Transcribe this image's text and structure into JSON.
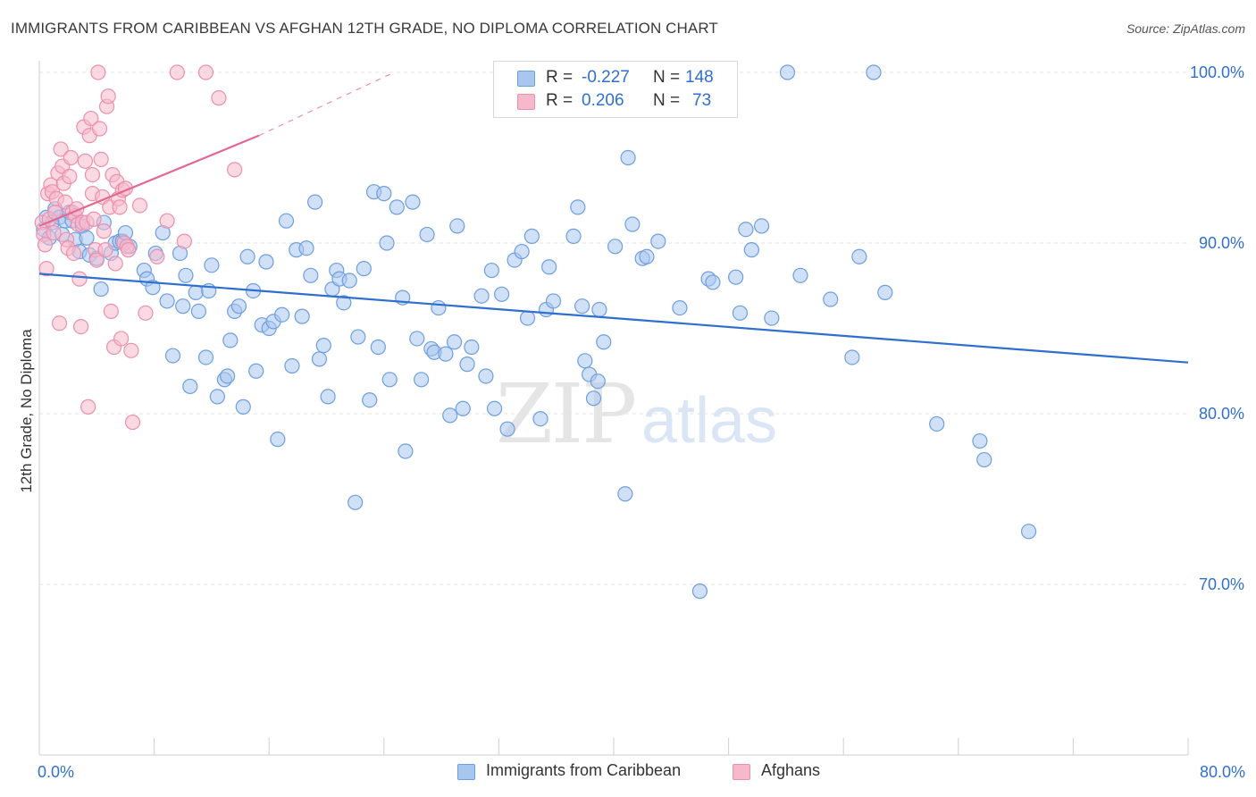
{
  "title": "IMMIGRANTS FROM CARIBBEAN VS AFGHAN 12TH GRADE, NO DIPLOMA CORRELATION CHART",
  "source": "Source: ZipAtlas.com",
  "watermark": {
    "zip": "ZIP",
    "atlas": "atlas"
  },
  "legend": {
    "rows": [
      {
        "r_label": "R =",
        "r_value": "-0.227",
        "n_label": "N =",
        "n_value": "148"
      },
      {
        "r_label": "R =",
        "r_value": "0.206",
        "n_label": "N =",
        "n_value": "73"
      }
    ]
  },
  "bottom_legend": [
    "Immigrants from Caribbean",
    "Afghans"
  ],
  "colors": {
    "blue_fill": "#a9c6ef",
    "blue_stroke": "#6d9ee0",
    "blue_line": "#2e6fcf",
    "pink_fill": "#f6b9cc",
    "pink_stroke": "#ec8fad",
    "pink_line": "#e2688f",
    "value_text": "#2f6fd0",
    "grid": "#e3e3e3"
  },
  "chart_data": {
    "type": "scatter",
    "title": "IMMIGRANTS FROM CARIBBEAN VS AFGHAN 12TH GRADE, NO DIPLOMA CORRELATION CHART",
    "xlabel": "",
    "ylabel": "12th Grade, No Diploma",
    "xlim": [
      0,
      80
    ],
    "ylim": [
      60,
      101
    ],
    "x_tick_labels": [
      "0.0%",
      "80.0%"
    ],
    "y_ticks": [
      70,
      80,
      90,
      100
    ],
    "y_tick_labels": [
      "70.0%",
      "80.0%",
      "90.0%",
      "100.0%"
    ],
    "grid": true,
    "legend_position": "top-center",
    "series": [
      {
        "name": "Immigrants from Caribbean",
        "R": -0.227,
        "N": 148,
        "trend": {
          "x": [
            0,
            80
          ],
          "y": [
            88.2,
            83.0
          ]
        },
        "points": [
          [
            0.3,
            90.8
          ],
          [
            0.5,
            91.5
          ],
          [
            0.7,
            90.3
          ],
          [
            0.9,
            91.2
          ],
          [
            1.1,
            92.0
          ],
          [
            1.4,
            91.5
          ],
          [
            1.6,
            90.5
          ],
          [
            1.8,
            91.3
          ],
          [
            2.1,
            91.8
          ],
          [
            2.3,
            91.3
          ],
          [
            2.5,
            90.2
          ],
          [
            2.8,
            89.5
          ],
          [
            3.0,
            91.0
          ],
          [
            3.3,
            90.3
          ],
          [
            3.5,
            89.3
          ],
          [
            4.0,
            89.1
          ],
          [
            4.3,
            87.3
          ],
          [
            4.5,
            91.2
          ],
          [
            5.0,
            89.4
          ],
          [
            5.3,
            90.0
          ],
          [
            5.6,
            90.1
          ],
          [
            5.8,
            90.1
          ],
          [
            6.0,
            90.6
          ],
          [
            6.3,
            89.8
          ],
          [
            7.3,
            88.4
          ],
          [
            7.5,
            87.9
          ],
          [
            7.9,
            87.4
          ],
          [
            8.1,
            89.4
          ],
          [
            8.6,
            90.6
          ],
          [
            8.9,
            86.6
          ],
          [
            9.3,
            83.4
          ],
          [
            9.8,
            89.4
          ],
          [
            10.0,
            86.3
          ],
          [
            10.2,
            88.1
          ],
          [
            10.5,
            81.6
          ],
          [
            10.9,
            87.1
          ],
          [
            11.1,
            86.0
          ],
          [
            11.6,
            83.3
          ],
          [
            11.8,
            87.2
          ],
          [
            12.0,
            88.7
          ],
          [
            12.4,
            81.0
          ],
          [
            12.9,
            82.0
          ],
          [
            13.1,
            82.2
          ],
          [
            13.3,
            84.3
          ],
          [
            13.6,
            86.0
          ],
          [
            13.9,
            86.3
          ],
          [
            14.2,
            80.4
          ],
          [
            14.5,
            89.2
          ],
          [
            14.9,
            87.2
          ],
          [
            15.1,
            82.5
          ],
          [
            15.5,
            85.2
          ],
          [
            15.8,
            88.9
          ],
          [
            16.0,
            85.0
          ],
          [
            16.3,
            85.4
          ],
          [
            16.6,
            78.5
          ],
          [
            16.9,
            85.8
          ],
          [
            17.2,
            91.3
          ],
          [
            17.6,
            82.8
          ],
          [
            17.9,
            89.6
          ],
          [
            18.3,
            85.7
          ],
          [
            18.6,
            89.7
          ],
          [
            18.9,
            88.1
          ],
          [
            19.2,
            92.4
          ],
          [
            19.5,
            83.2
          ],
          [
            19.8,
            84.0
          ],
          [
            20.1,
            81.0
          ],
          [
            20.4,
            87.3
          ],
          [
            20.7,
            88.4
          ],
          [
            20.9,
            87.9
          ],
          [
            21.2,
            86.5
          ],
          [
            21.6,
            87.8
          ],
          [
            22.0,
            74.8
          ],
          [
            22.2,
            84.5
          ],
          [
            22.6,
            88.5
          ],
          [
            23.0,
            80.8
          ],
          [
            23.3,
            93.0
          ],
          [
            23.6,
            83.9
          ],
          [
            24.0,
            92.9
          ],
          [
            24.2,
            90.0
          ],
          [
            24.4,
            82.0
          ],
          [
            24.9,
            92.1
          ],
          [
            25.3,
            86.8
          ],
          [
            25.5,
            77.8
          ],
          [
            26.0,
            92.4
          ],
          [
            26.3,
            84.4
          ],
          [
            26.6,
            82.0
          ],
          [
            27.0,
            90.5
          ],
          [
            27.3,
            83.8
          ],
          [
            27.5,
            83.6
          ],
          [
            27.8,
            86.2
          ],
          [
            28.3,
            83.5
          ],
          [
            28.6,
            79.9
          ],
          [
            28.9,
            84.2
          ],
          [
            29.1,
            91.0
          ],
          [
            29.5,
            80.3
          ],
          [
            29.8,
            82.9
          ],
          [
            30.1,
            83.9
          ],
          [
            30.8,
            86.9
          ],
          [
            31.1,
            82.2
          ],
          [
            31.5,
            88.4
          ],
          [
            31.7,
            80.3
          ],
          [
            32.2,
            87.0
          ],
          [
            32.6,
            79.1
          ],
          [
            33.1,
            89.0
          ],
          [
            33.6,
            89.5
          ],
          [
            34.0,
            85.6
          ],
          [
            34.3,
            90.4
          ],
          [
            34.9,
            79.7
          ],
          [
            35.3,
            86.1
          ],
          [
            35.5,
            88.6
          ],
          [
            35.8,
            86.6
          ],
          [
            37.2,
            90.4
          ],
          [
            37.5,
            92.1
          ],
          [
            37.8,
            86.3
          ],
          [
            38.0,
            83.1
          ],
          [
            38.3,
            82.3
          ],
          [
            38.6,
            80.9
          ],
          [
            38.9,
            81.9
          ],
          [
            39.0,
            86.1
          ],
          [
            39.3,
            84.2
          ],
          [
            40.1,
            89.8
          ],
          [
            40.8,
            75.3
          ],
          [
            41.0,
            95.0
          ],
          [
            41.3,
            91.1
          ],
          [
            42.0,
            89.1
          ],
          [
            42.3,
            89.2
          ],
          [
            43.1,
            90.1
          ],
          [
            44.6,
            86.2
          ],
          [
            46.0,
            69.6
          ],
          [
            46.6,
            87.9
          ],
          [
            46.9,
            87.7
          ],
          [
            48.5,
            88.0
          ],
          [
            48.8,
            85.9
          ],
          [
            49.2,
            90.8
          ],
          [
            49.6,
            89.6
          ],
          [
            50.3,
            91.0
          ],
          [
            51.0,
            85.6
          ],
          [
            52.1,
            100.0
          ],
          [
            53.0,
            88.1
          ],
          [
            55.1,
            86.7
          ],
          [
            56.6,
            83.3
          ],
          [
            57.1,
            89.2
          ],
          [
            58.1,
            100.0
          ],
          [
            58.9,
            87.1
          ],
          [
            62.5,
            79.4
          ],
          [
            65.5,
            78.4
          ],
          [
            65.8,
            77.3
          ],
          [
            68.9,
            73.1
          ]
        ]
      },
      {
        "name": "Afghans",
        "R": 0.206,
        "N": 73,
        "trend": {
          "x": [
            0,
            15.3
          ],
          "y": [
            91.0,
            96.3
          ],
          "dashed_to": {
            "x": 24.7,
            "y": 100.0
          }
        },
        "points": [
          [
            0.2,
            91.2
          ],
          [
            0.3,
            90.5
          ],
          [
            0.4,
            89.9
          ],
          [
            0.5,
            88.5
          ],
          [
            0.6,
            92.9
          ],
          [
            0.7,
            91.4
          ],
          [
            0.8,
            93.4
          ],
          [
            0.9,
            93.0
          ],
          [
            1.0,
            90.6
          ],
          [
            1.1,
            91.8
          ],
          [
            1.2,
            92.6
          ],
          [
            1.3,
            94.1
          ],
          [
            1.4,
            85.3
          ],
          [
            1.5,
            95.5
          ],
          [
            1.6,
            94.5
          ],
          [
            1.7,
            93.5
          ],
          [
            1.8,
            92.4
          ],
          [
            1.9,
            90.2
          ],
          [
            2.0,
            89.7
          ],
          [
            2.1,
            93.9
          ],
          [
            2.2,
            95.0
          ],
          [
            2.3,
            91.8
          ],
          [
            2.4,
            89.4
          ],
          [
            2.5,
            91.6
          ],
          [
            2.6,
            92.0
          ],
          [
            2.7,
            91.1
          ],
          [
            2.8,
            87.9
          ],
          [
            2.9,
            85.1
          ],
          [
            3.0,
            91.2
          ],
          [
            3.1,
            96.8
          ],
          [
            3.2,
            94.8
          ],
          [
            3.3,
            91.2
          ],
          [
            3.4,
            80.4
          ],
          [
            3.5,
            96.3
          ],
          [
            3.6,
            97.3
          ],
          [
            3.7,
            92.9
          ],
          [
            3.8,
            91.4
          ],
          [
            3.9,
            89.6
          ],
          [
            4.0,
            89.0
          ],
          [
            4.1,
            100.0
          ],
          [
            4.2,
            96.7
          ],
          [
            4.3,
            94.9
          ],
          [
            4.4,
            92.7
          ],
          [
            4.5,
            90.7
          ],
          [
            4.6,
            89.6
          ],
          [
            4.7,
            98.0
          ],
          [
            4.8,
            98.6
          ],
          [
            4.9,
            92.1
          ],
          [
            5.0,
            86.0
          ],
          [
            5.1,
            94.0
          ],
          [
            5.2,
            83.9
          ],
          [
            5.3,
            88.8
          ],
          [
            5.4,
            93.6
          ],
          [
            5.5,
            92.6
          ],
          [
            5.6,
            92.1
          ],
          [
            5.7,
            84.4
          ],
          [
            5.8,
            93.1
          ],
          [
            5.9,
            90.0
          ],
          [
            6.0,
            93.2
          ],
          [
            6.1,
            89.8
          ],
          [
            6.2,
            89.6
          ],
          [
            6.4,
            83.7
          ],
          [
            6.5,
            79.5
          ],
          [
            7.4,
            85.9
          ],
          [
            8.2,
            89.2
          ],
          [
            8.9,
            91.3
          ],
          [
            9.6,
            100.0
          ],
          [
            10.1,
            90.1
          ],
          [
            11.6,
            100.0
          ],
          [
            12.5,
            98.5
          ],
          [
            13.6,
            94.3
          ],
          [
            7.0,
            92.2
          ],
          [
            3.7,
            94.0
          ]
        ]
      }
    ]
  }
}
